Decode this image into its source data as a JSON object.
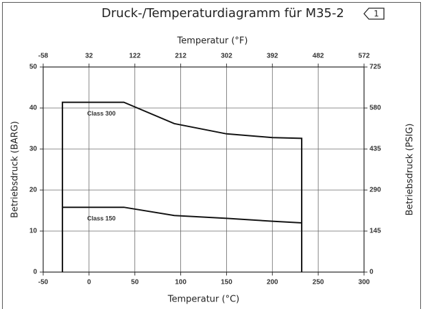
{
  "chart_data": {
    "type": "line",
    "title": "Druck-/Temperaturdiagramm für M35-2",
    "badge": "1",
    "x_label": "Temperatur (°C)",
    "x2_label": "Temperatur (°F)",
    "y_label": "Betriebsdruck (BARG)",
    "y2_label": "Betriebsdruck (PSIG)",
    "xlim": [
      -50,
      300
    ],
    "xticks": [
      -50,
      0,
      50,
      100,
      150,
      200,
      250,
      300
    ],
    "x2lim": [
      -58,
      572
    ],
    "x2ticks": [
      -58,
      32,
      122,
      212,
      302,
      392,
      482,
      572
    ],
    "ylim": [
      0,
      50
    ],
    "yticks": [
      0,
      10,
      20,
      30,
      40,
      50
    ],
    "y2lim": [
      0,
      725
    ],
    "y2ticks": [
      0,
      145,
      290,
      435,
      580,
      725
    ],
    "grid": true,
    "series": [
      {
        "name": "Class 300",
        "color": "#111111",
        "x": [
          -29,
          -29,
          38,
          93,
          150,
          200,
          232,
          232
        ],
        "values": [
          0,
          41.4,
          41.4,
          36.2,
          33.7,
          32.8,
          32.6,
          0
        ]
      },
      {
        "name": "Class 150",
        "color": "#111111",
        "x": [
          -29,
          38,
          93,
          150,
          200,
          232
        ],
        "values": [
          15.8,
          15.8,
          13.8,
          13.1,
          12.4,
          12.0
        ]
      }
    ]
  }
}
